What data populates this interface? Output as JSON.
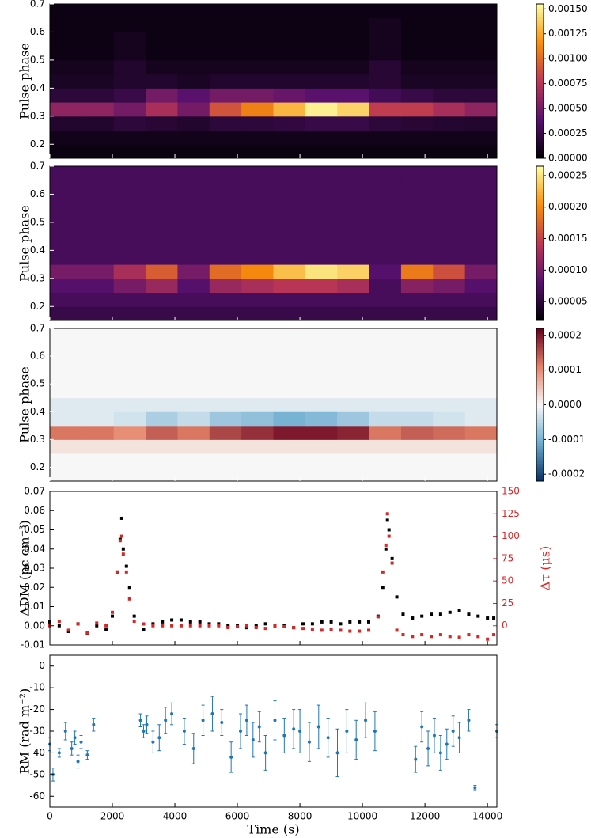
{
  "chart_data": [
    {
      "type": "heatmap",
      "ylabel": "Pulse phase",
      "xlim": [
        0,
        14300
      ],
      "xticks": [
        0,
        2000,
        4000,
        6000,
        8000,
        10000,
        12000,
        14000
      ],
      "ylim": [
        0.15,
        0.7
      ],
      "yticks": [
        0.2,
        0.3,
        0.4,
        0.5,
        0.6,
        0.7
      ],
      "cmap": "inferno",
      "zlim": [
        0,
        0.00155
      ],
      "zticks": [
        {
          "value": 0,
          "label": "0.00000"
        },
        {
          "value": 0.00025,
          "label": "0.00025"
        },
        {
          "value": 0.0005,
          "label": "0.00050"
        },
        {
          "value": 0.00075,
          "label": "0.00075"
        },
        {
          "value": 0.001,
          "label": "0.00100"
        },
        {
          "value": 0.00125,
          "label": "0.00125"
        },
        {
          "value": 0.0015,
          "label": "0.00150"
        }
      ],
      "z": [
        [
          5e-05,
          5e-05,
          5e-05,
          5e-05,
          5e-05,
          5e-05,
          5e-05,
          5e-05,
          5e-05,
          5e-05,
          5e-05,
          5e-05,
          5e-05,
          5e-05
        ],
        [
          8e-05,
          8e-05,
          8e-05,
          8e-05,
          8e-05,
          8e-05,
          8e-05,
          8e-05,
          8e-05,
          8e-05,
          8e-05,
          8e-05,
          8e-05,
          8e-05
        ],
        [
          0.00015,
          0.00015,
          0.0002,
          0.00018,
          0.00015,
          0.0002,
          0.0002,
          0.00022,
          0.00025,
          0.00025,
          0.0002,
          0.00018,
          0.00016,
          0.00015
        ],
        [
          0.0006,
          0.0006,
          0.0005,
          0.0007,
          0.0005,
          0.0009,
          0.0011,
          0.0013,
          0.0015,
          0.0014,
          0.0008,
          0.0008,
          0.0007,
          0.0006
        ],
        [
          0.0002,
          0.0002,
          0.00025,
          0.0005,
          0.0004,
          0.0005,
          0.0005,
          0.00045,
          0.0004,
          0.0004,
          0.0003,
          0.00025,
          0.0002,
          0.0002
        ],
        [
          0.00012,
          0.00012,
          0.00015,
          0.00015,
          0.00012,
          0.00015,
          0.00015,
          0.00015,
          0.00015,
          0.00015,
          0.00018,
          0.00012,
          0.00012,
          0.00012
        ],
        [
          0.0001,
          0.0001,
          0.00015,
          0.0001,
          0.0001,
          0.0001,
          0.0001,
          0.0001,
          0.0001,
          0.0001,
          0.00018,
          0.0001,
          0.0001,
          0.0001
        ],
        [
          6e-05,
          6e-05,
          0.0001,
          6e-05,
          6e-05,
          6e-05,
          6e-05,
          6e-05,
          6e-05,
          6e-05,
          0.0001,
          6e-05,
          6e-05,
          6e-05
        ],
        [
          6e-05,
          6e-05,
          0.0001,
          6e-05,
          6e-05,
          6e-05,
          6e-05,
          6e-05,
          6e-05,
          6e-05,
          0.0001,
          6e-05,
          6e-05,
          6e-05
        ],
        [
          6e-05,
          6e-05,
          6e-05,
          6e-05,
          6e-05,
          6e-05,
          6e-05,
          6e-05,
          6e-05,
          6e-05,
          0.0001,
          6e-05,
          6e-05,
          6e-05
        ],
        [
          6e-05,
          6e-05,
          6e-05,
          6e-05,
          6e-05,
          6e-05,
          6e-05,
          6e-05,
          6e-05,
          6e-05,
          6e-05,
          6e-05,
          6e-05,
          6e-05
        ]
      ]
    },
    {
      "type": "heatmap",
      "ylabel": "Pulse phase",
      "xlim": [
        0,
        14300
      ],
      "xticks": [
        0,
        2000,
        4000,
        6000,
        8000,
        10000,
        12000,
        14000
      ],
      "ylim": [
        0.15,
        0.7
      ],
      "yticks": [
        0.2,
        0.3,
        0.4,
        0.5,
        0.6,
        0.7
      ],
      "cmap": "inferno",
      "zlim": [
        2e-05,
        0.000265
      ],
      "zticks": [
        {
          "value": 5e-05,
          "label": "0.00005"
        },
        {
          "value": 0.0001,
          "label": "0.00010"
        },
        {
          "value": 0.00015,
          "label": "0.00015"
        },
        {
          "value": 0.0002,
          "label": "0.00020"
        },
        {
          "value": 0.00025,
          "label": "0.00025"
        }
      ],
      "z": [
        [
          6e-05,
          6e-05,
          6e-05,
          6e-05,
          6e-05,
          6e-05,
          6e-05,
          6e-05,
          6e-05,
          6e-05,
          6e-05,
          6e-05,
          6e-05,
          6e-05
        ],
        [
          7e-05,
          7e-05,
          7e-05,
          7e-05,
          7e-05,
          7e-05,
          7e-05,
          7e-05,
          7e-05,
          7e-05,
          7e-05,
          7e-05,
          7e-05,
          7e-05
        ],
        [
          8e-05,
          8e-05,
          0.0001,
          0.00012,
          8e-05,
          0.00012,
          0.00013,
          0.00014,
          0.00014,
          0.00013,
          7e-05,
          0.00011,
          0.0001,
          8e-05
        ],
        [
          0.0001,
          0.0001,
          0.00013,
          0.00017,
          0.0001,
          0.00018,
          0.0002,
          0.00023,
          0.00025,
          0.00024,
          8e-05,
          0.00019,
          0.00016,
          0.0001
        ],
        [
          7e-05,
          7e-05,
          7e-05,
          7e-05,
          7e-05,
          7e-05,
          7e-05,
          7e-05,
          7e-05,
          7e-05,
          7e-05,
          7e-05,
          7e-05,
          7e-05
        ],
        [
          7e-05,
          7e-05,
          7e-05,
          7e-05,
          7e-05,
          7e-05,
          7e-05,
          7e-05,
          7e-05,
          7e-05,
          7e-05,
          7e-05,
          7e-05,
          7e-05
        ],
        [
          7e-05,
          7e-05,
          7e-05,
          7e-05,
          7e-05,
          7e-05,
          7e-05,
          7e-05,
          7e-05,
          7e-05,
          7e-05,
          7e-05,
          7e-05,
          7e-05
        ],
        [
          7e-05,
          7e-05,
          7e-05,
          7e-05,
          7e-05,
          7e-05,
          7e-05,
          7e-05,
          7e-05,
          7e-05,
          7e-05,
          7e-05,
          7e-05,
          7e-05
        ],
        [
          7e-05,
          7e-05,
          7e-05,
          7e-05,
          7e-05,
          7e-05,
          7e-05,
          7e-05,
          7e-05,
          7e-05,
          7e-05,
          7e-05,
          7e-05,
          7e-05
        ],
        [
          7e-05,
          7e-05,
          7e-05,
          7e-05,
          7e-05,
          7e-05,
          7e-05,
          7e-05,
          7e-05,
          7e-05,
          7e-05,
          7e-05,
          7e-05,
          7e-05
        ],
        [
          7e-05,
          7e-05,
          7e-05,
          7e-05,
          7e-05,
          7e-05,
          7e-05,
          7e-05,
          7e-05,
          7e-05,
          7e-05,
          7e-05,
          7e-05,
          7e-05
        ]
      ]
    },
    {
      "type": "heatmap",
      "ylabel": "Pulse phase",
      "xlim": [
        0,
        14300
      ],
      "xticks": [
        0,
        2000,
        4000,
        6000,
        8000,
        10000,
        12000,
        14000
      ],
      "ylim": [
        0.15,
        0.7
      ],
      "yticks": [
        0.2,
        0.3,
        0.4,
        0.5,
        0.6,
        0.7
      ],
      "cmap": "RdBu_r",
      "zlim": [
        -0.00022,
        0.00022
      ],
      "zticks": [
        {
          "value": -0.0002,
          "label": "-0.0002"
        },
        {
          "value": -0.0001,
          "label": "-0.0001"
        },
        {
          "value": 0,
          "label": "0.0000"
        },
        {
          "value": 0.0001,
          "label": "0.0001"
        },
        {
          "value": 0.0002,
          "label": "0.0002"
        }
      ],
      "z": [
        [
          0,
          0,
          0,
          0,
          0,
          0,
          0,
          0,
          0,
          0,
          0,
          0,
          0,
          0
        ],
        [
          0,
          0,
          0,
          0,
          0,
          0,
          0,
          0,
          0,
          0,
          0,
          0,
          0,
          0
        ],
        [
          2e-05,
          2e-05,
          2e-05,
          2e-05,
          2e-05,
          2e-05,
          2e-05,
          2e-05,
          2e-05,
          2e-05,
          2e-05,
          2e-05,
          2e-05,
          2e-05
        ],
        [
          0.00012,
          0.00012,
          0.0001,
          0.00014,
          0.00012,
          0.00016,
          0.00018,
          0.0002,
          0.0002,
          0.00019,
          0.00012,
          0.00014,
          0.00013,
          0.00012
        ],
        [
          -2e-05,
          -2e-05,
          -3e-05,
          -6e-05,
          -4e-05,
          -7e-05,
          -8e-05,
          -0.0001,
          -9e-05,
          -7e-05,
          -4e-05,
          -4e-05,
          -3e-05,
          -2e-05
        ],
        [
          -2e-05,
          -2e-05,
          -2e-05,
          -2e-05,
          -2e-05,
          -2e-05,
          -2e-05,
          -2e-05,
          -2e-05,
          -2e-05,
          -2e-05,
          -2e-05,
          -2e-05,
          -2e-05
        ],
        [
          0,
          0,
          0,
          0,
          0,
          0,
          0,
          0,
          0,
          0,
          0,
          0,
          0,
          0
        ],
        [
          0,
          0,
          0,
          0,
          0,
          0,
          0,
          0,
          0,
          0,
          0,
          0,
          0,
          0
        ],
        [
          0,
          0,
          0,
          0,
          0,
          0,
          0,
          0,
          0,
          0,
          0,
          0,
          0,
          0
        ],
        [
          0,
          0,
          0,
          0,
          0,
          0,
          0,
          0,
          0,
          0,
          0,
          0,
          0,
          0
        ],
        [
          0,
          0,
          0,
          0,
          0,
          0,
          0,
          0,
          0,
          0,
          0,
          0,
          0,
          0
        ]
      ]
    },
    {
      "type": "scatter",
      "ylabel": "ΔDM (pc cm⁻³)",
      "y2label": "Δτ (μs)",
      "xlim": [
        0,
        14300
      ],
      "xticks": [
        0,
        2000,
        4000,
        6000,
        8000,
        10000,
        12000,
        14000
      ],
      "ylim": [
        -0.01,
        0.07
      ],
      "yticks": [
        -0.01,
        {
          "value": 0,
          "label": "0.00"
        },
        0.01,
        0.02,
        0.03,
        0.04,
        0.05,
        0.06,
        0.07
      ],
      "y2lim": [
        -21.43,
        150
      ],
      "y2ticks": [
        0,
        25,
        50,
        75,
        100,
        125,
        150
      ],
      "x": [
        0,
        300,
        600,
        900,
        1200,
        1500,
        1800,
        2000,
        2150,
        2250,
        2300,
        2350,
        2450,
        2550,
        2700,
        3000,
        3300,
        3600,
        3900,
        4200,
        4500,
        4800,
        5100,
        5400,
        5700,
        6000,
        6300,
        6600,
        6900,
        7200,
        7500,
        7800,
        8100,
        8400,
        8700,
        9000,
        9300,
        9600,
        9900,
        10200,
        10500,
        10650,
        10750,
        10800,
        10850,
        10950,
        11100,
        11300,
        11600,
        11900,
        12200,
        12500,
        12800,
        13100,
        13400,
        13700,
        14000,
        14200
      ],
      "series": [
        {
          "color": "#000000",
          "values": [
            0.002,
            0,
            -0.003,
            0.001,
            -0.004,
            0,
            -0.002,
            0.005,
            0.028,
            0.045,
            0.056,
            0.04,
            0.031,
            0.02,
            0.005,
            -0.002,
            0.001,
            0.002,
            0.003,
            0.003,
            0.002,
            0.002,
            0.001,
            0.001,
            0,
            0,
            -0.001,
            0,
            0.001,
            0,
            0,
            -0.001,
            0.001,
            0.001,
            0.002,
            0.002,
            0.001,
            0.002,
            0.002,
            0.002,
            0.005,
            0.02,
            0.04,
            0.055,
            0.05,
            0.035,
            0.015,
            0.006,
            0.004,
            0.005,
            0.006,
            0.006,
            0.007,
            0.008,
            0.006,
            0.005,
            0.004,
            0.004
          ]
        },
        {
          "color": "#d62728",
          "axis": "y2",
          "values": [
            0,
            5,
            -5,
            2,
            -8,
            3,
            0,
            15,
            60,
            95,
            100,
            80,
            60,
            30,
            5,
            2,
            0,
            0,
            0,
            0,
            0,
            0,
            0,
            0,
            -2,
            -1,
            0,
            -2,
            -3,
            0,
            -1,
            -2,
            -3,
            -4,
            -5,
            -4,
            -5,
            -6,
            -6,
            -5,
            10,
            60,
            90,
            125,
            100,
            70,
            -5,
            -10,
            -12,
            -10,
            -12,
            -10,
            -12,
            -13,
            -10,
            -12,
            -15,
            -10
          ]
        }
      ]
    },
    {
      "type": "errorbar",
      "ylabel": "RM (rad m⁻²)",
      "xlabel": "Time (s)",
      "xlim": [
        0,
        14300
      ],
      "xticks": [
        0,
        2000,
        4000,
        6000,
        8000,
        10000,
        12000,
        14000
      ],
      "ylim": [
        -65,
        5
      ],
      "yticks": [
        -60,
        -50,
        -40,
        -30,
        -20,
        -10,
        0
      ],
      "color": "#1f77b4",
      "x": [
        0,
        100,
        300,
        500,
        700,
        800,
        900,
        1000,
        1200,
        1400,
        2900,
        3000,
        3100,
        3300,
        3500,
        3700,
        3900,
        4300,
        4600,
        4900,
        5200,
        5500,
        5800,
        6100,
        6300,
        6500,
        6700,
        6900,
        7200,
        7500,
        7800,
        8000,
        8300,
        8600,
        8900,
        9200,
        9500,
        9800,
        10100,
        10400,
        11700,
        11900,
        12100,
        12300,
        12500,
        12700,
        12900,
        13100,
        13400,
        13600,
        14300
      ],
      "values": [
        -36,
        -50,
        -40,
        -30,
        -38,
        -33,
        -44,
        -35,
        -41,
        -27,
        -25,
        -30,
        -27,
        -35,
        -33,
        -25,
        -22,
        -30,
        -38,
        -25,
        -22,
        -26,
        -42,
        -30,
        -25,
        -34,
        -28,
        -40,
        -25,
        -32,
        -29,
        -30,
        -35,
        -28,
        -33,
        -40,
        -30,
        -34,
        -25,
        -30,
        -43,
        -28,
        -38,
        -32,
        -40,
        -36,
        -30,
        -33,
        -25,
        -56,
        -30
      ],
      "errors": [
        3,
        3,
        2,
        4,
        3,
        3,
        3,
        3,
        2,
        3,
        3,
        3,
        4,
        5,
        6,
        6,
        5,
        6,
        7,
        7,
        8,
        6,
        7,
        8,
        7,
        8,
        7,
        8,
        9,
        8,
        9,
        10,
        9,
        10,
        9,
        11,
        10,
        9,
        8,
        9,
        6,
        7,
        8,
        8,
        8,
        7,
        7,
        7,
        5,
        1,
        3
      ]
    }
  ]
}
